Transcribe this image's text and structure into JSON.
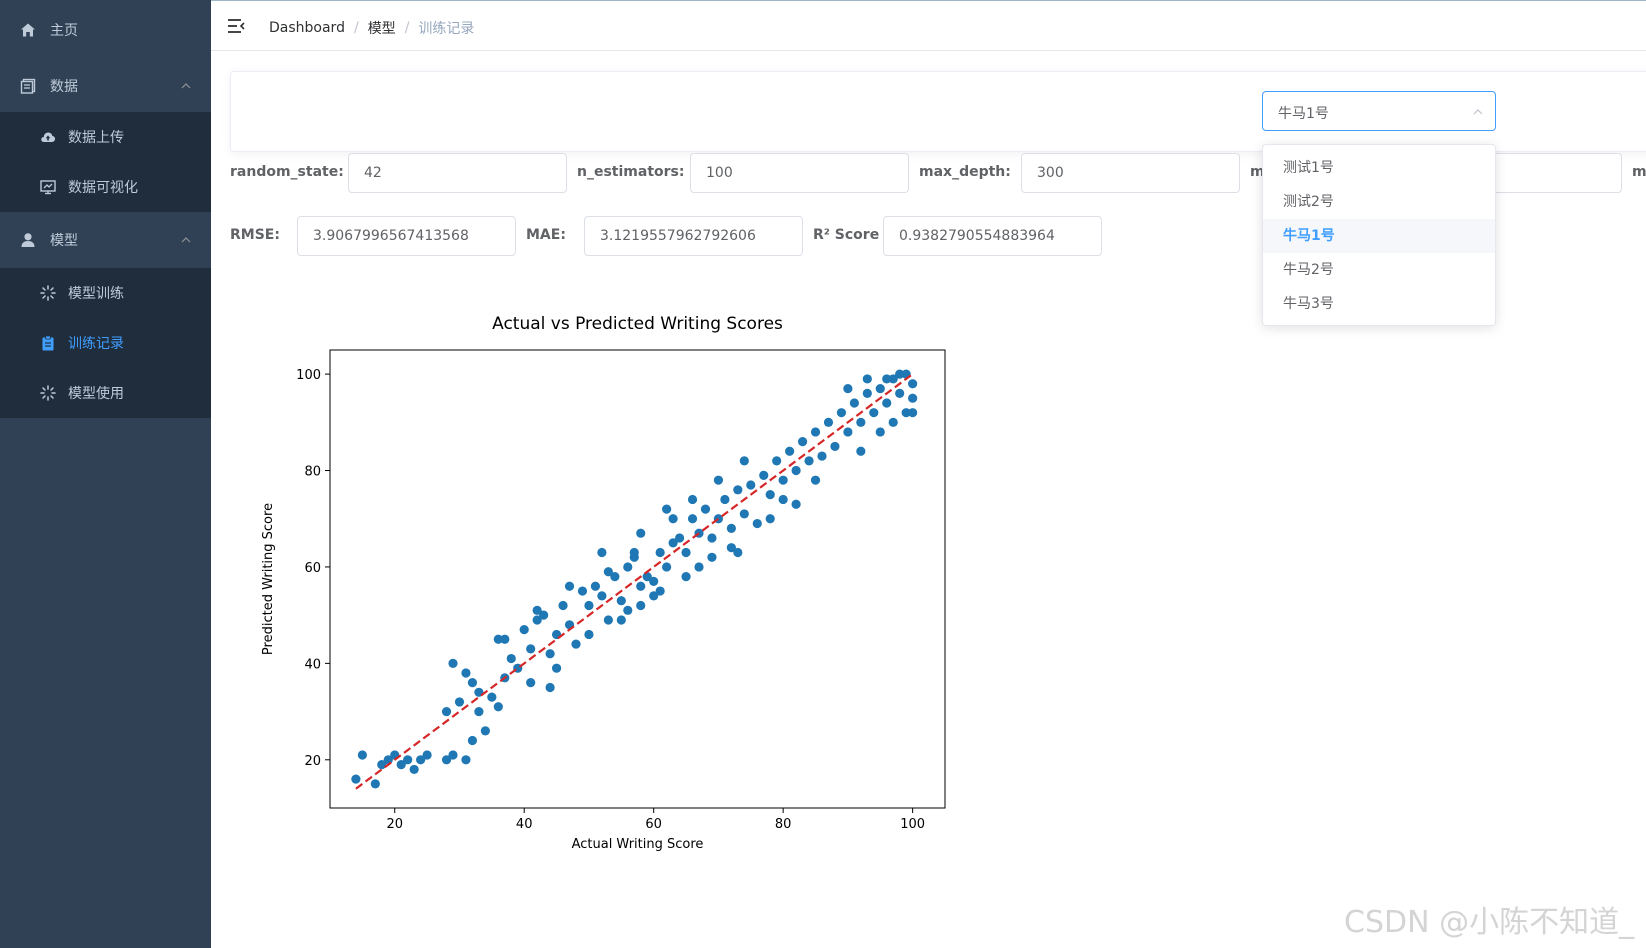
{
  "sidebar": {
    "home": "主页",
    "data": "数据",
    "data_upload": "数据上传",
    "data_visualize": "数据可视化",
    "model": "模型",
    "model_train": "模型训练",
    "train_records": "训练记录",
    "model_use": "模型使用",
    "active_color": "#409eff",
    "bg_color": "#304156"
  },
  "breadcrumb": [
    "Dashboard",
    "模型",
    "训练记录"
  ],
  "selector": {
    "value": "牛马1号",
    "options": [
      "测试1号",
      "测试2号",
      "牛马1号",
      "牛马2号",
      "牛马3号"
    ],
    "selected_index": 2
  },
  "params": {
    "random_state_label": "random_state:",
    "random_state": "42",
    "n_estimators_label": "n_estimators:",
    "n_estimators": "100",
    "max_depth_label": "max_depth:",
    "max_depth": "300",
    "hidden_label_1": "m",
    "hidden_label_2": "m"
  },
  "metrics": {
    "rmse_label": "RMSE:",
    "rmse": "3.9067996567413568",
    "mae_label": "MAE:",
    "mae": "3.1219557962792606",
    "r2_label": "R² Score",
    "r2": "0.9382790554883964"
  },
  "chart_data": {
    "type": "scatter",
    "title": "Actual vs Predicted Writing Scores",
    "xlabel": "Actual Writing Score",
    "ylabel": "Predicted Writing Score",
    "xlim": [
      10,
      105
    ],
    "ylim": [
      10,
      105
    ],
    "xticks": [
      20,
      40,
      60,
      80,
      100
    ],
    "yticks": [
      20,
      40,
      60,
      80,
      100
    ],
    "point_color": "#1f77b4",
    "line_color": "#d62728",
    "reference_line": {
      "x": [
        14,
        100
      ],
      "y": [
        14,
        100
      ],
      "style": "dashed"
    },
    "sample_points": [
      [
        14,
        16
      ],
      [
        15,
        21
      ],
      [
        17,
        15
      ],
      [
        18,
        19
      ],
      [
        19,
        20
      ],
      [
        20,
        21
      ],
      [
        21,
        19
      ],
      [
        22,
        20
      ],
      [
        23,
        18
      ],
      [
        24,
        20
      ],
      [
        25,
        21
      ],
      [
        28,
        20
      ],
      [
        29,
        21
      ],
      [
        31,
        20
      ],
      [
        28,
        30
      ],
      [
        30,
        32
      ],
      [
        32,
        36
      ],
      [
        31,
        38
      ],
      [
        33,
        34
      ],
      [
        29,
        40
      ],
      [
        35,
        33
      ],
      [
        34,
        26
      ],
      [
        36,
        31
      ],
      [
        37,
        37
      ],
      [
        33,
        30
      ],
      [
        32,
        24
      ],
      [
        38,
        41
      ],
      [
        36,
        45
      ],
      [
        39,
        39
      ],
      [
        40,
        47
      ],
      [
        41,
        43
      ],
      [
        42,
        49
      ],
      [
        43,
        50
      ],
      [
        44,
        42
      ],
      [
        45,
        46
      ],
      [
        46,
        52
      ],
      [
        47,
        48
      ],
      [
        48,
        44
      ],
      [
        45,
        39
      ],
      [
        44,
        35
      ],
      [
        41,
        36
      ],
      [
        50,
        52
      ],
      [
        51,
        56
      ],
      [
        52,
        54
      ],
      [
        53,
        49
      ],
      [
        54,
        58
      ],
      [
        55,
        53
      ],
      [
        56,
        60
      ],
      [
        57,
        62
      ],
      [
        58,
        56
      ],
      [
        59,
        58
      ],
      [
        60,
        57
      ],
      [
        61,
        63
      ],
      [
        62,
        60
      ],
      [
        63,
        65
      ],
      [
        56,
        51
      ],
      [
        58,
        52
      ],
      [
        60,
        54
      ],
      [
        64,
        66
      ],
      [
        65,
        63
      ],
      [
        66,
        70
      ],
      [
        67,
        67
      ],
      [
        68,
        72
      ],
      [
        69,
        66
      ],
      [
        70,
        70
      ],
      [
        71,
        74
      ],
      [
        72,
        68
      ],
      [
        73,
        76
      ],
      [
        74,
        71
      ],
      [
        75,
        77
      ],
      [
        67,
        60
      ],
      [
        69,
        62
      ],
      [
        72,
        64
      ],
      [
        76,
        69
      ],
      [
        73,
        63
      ],
      [
        77,
        79
      ],
      [
        78,
        75
      ],
      [
        79,
        82
      ],
      [
        80,
        78
      ],
      [
        81,
        84
      ],
      [
        82,
        80
      ],
      [
        83,
        86
      ],
      [
        84,
        82
      ],
      [
        85,
        88
      ],
      [
        86,
        83
      ],
      [
        87,
        90
      ],
      [
        88,
        85
      ],
      [
        80,
        74
      ],
      [
        82,
        73
      ],
      [
        85,
        78
      ],
      [
        78,
        70
      ],
      [
        89,
        92
      ],
      [
        90,
        88
      ],
      [
        91,
        94
      ],
      [
        92,
        90
      ],
      [
        93,
        96
      ],
      [
        94,
        92
      ],
      [
        95,
        97
      ],
      [
        96,
        94
      ],
      [
        97,
        99
      ],
      [
        98,
        96
      ],
      [
        99,
        100
      ],
      [
        100,
        98
      ],
      [
        100,
        95
      ],
      [
        99,
        92
      ],
      [
        97,
        90
      ],
      [
        95,
        88
      ],
      [
        92,
        84
      ],
      [
        100,
        92
      ],
      [
        98,
        100
      ],
      [
        96,
        99
      ],
      [
        93,
        99
      ],
      [
        90,
        97
      ],
      [
        62,
        72
      ],
      [
        58,
        67
      ],
      [
        52,
        63
      ],
      [
        47,
        56
      ],
      [
        42,
        51
      ],
      [
        37,
        45
      ],
      [
        66,
        74
      ],
      [
        70,
        78
      ],
      [
        74,
        82
      ],
      [
        61,
        55
      ],
      [
        65,
        58
      ],
      [
        55,
        49
      ],
      [
        50,
        46
      ],
      [
        63,
        70
      ],
      [
        57,
        63
      ],
      [
        53,
        59
      ],
      [
        49,
        55
      ]
    ]
  },
  "watermark": "CSDN @小陈不知道_"
}
